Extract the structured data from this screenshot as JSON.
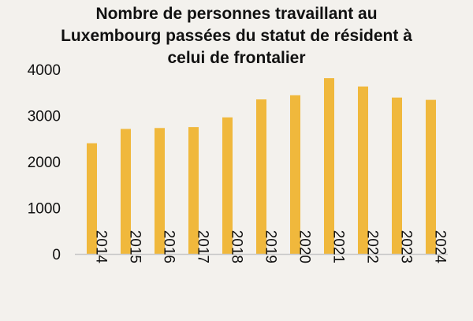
{
  "chart_data": {
    "type": "bar",
    "title_lines": [
      "Nombre de personnes travaillant au",
      "Luxembourg passées du statut de résident à",
      "celui de frontalier"
    ],
    "categories": [
      "2014",
      "2015",
      "2016",
      "2017",
      "2018",
      "2019",
      "2020",
      "2021",
      "2022",
      "2023",
      "2024"
    ],
    "values": [
      2400,
      2710,
      2730,
      2750,
      2960,
      3350,
      3440,
      3810,
      3630,
      3390,
      3340
    ],
    "ylim": [
      0,
      4000
    ],
    "yticks": [
      0,
      1000,
      2000,
      3000,
      4000
    ],
    "grid": false,
    "bar_color": "#f0b83c",
    "axis_color": "#c8c8c8",
    "background": "#f3f1ed"
  }
}
